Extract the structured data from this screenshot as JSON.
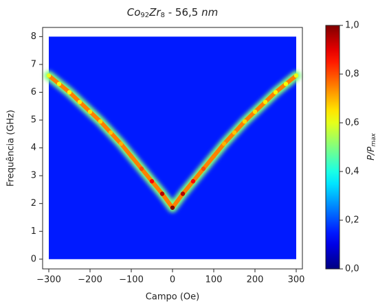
{
  "chart_data": {
    "type": "spectrum",
    "title_parts": [
      "Co",
      "92",
      "Zr",
      "8",
      " - 56,5 ",
      "nm"
    ],
    "x_label": "Campo (Oe)",
    "y_label": "Frequência (GHz)",
    "colorbar_label_parts": [
      "P/P",
      "max"
    ],
    "x": [
      -300,
      -275,
      -250,
      -225,
      -200,
      -175,
      -150,
      -125,
      -100,
      -75,
      -50,
      -25,
      0,
      25,
      50,
      75,
      100,
      125,
      150,
      175,
      200,
      225,
      250,
      275,
      300
    ],
    "y": [
      6.6,
      6.3,
      6.0,
      5.65,
      5.3,
      4.95,
      4.55,
      4.15,
      3.7,
      3.25,
      2.8,
      2.35,
      1.85,
      2.35,
      2.8,
      3.25,
      3.7,
      4.15,
      4.55,
      4.95,
      5.3,
      5.65,
      6.0,
      6.3,
      6.6
    ],
    "values": [
      0.6,
      0.62,
      0.63,
      0.64,
      0.65,
      0.66,
      0.68,
      0.7,
      0.75,
      0.8,
      0.88,
      0.95,
      1.0,
      0.95,
      0.88,
      0.8,
      0.75,
      0.7,
      0.68,
      0.66,
      0.65,
      0.64,
      0.63,
      0.62,
      0.6
    ],
    "background": 0.15,
    "colormap": "jet",
    "xlim": [
      -315,
      315
    ],
    "ylim": [
      -0.35,
      8.33
    ],
    "xticks": [
      {
        "value": -300,
        "label": "−300"
      },
      {
        "value": -200,
        "label": "−200"
      },
      {
        "value": -100,
        "label": "−100"
      },
      0,
      100,
      200,
      300
    ],
    "yticks": [
      0,
      1,
      2,
      3,
      4,
      5,
      6,
      7,
      8
    ],
    "clim": [
      0,
      1
    ],
    "cticks": [
      {
        "value": 0,
        "label": "0,0"
      },
      {
        "value": 0.2,
        "label": "0,2"
      },
      {
        "value": 0.4,
        "label": "0,4"
      },
      {
        "value": 0.6,
        "label": "0,6"
      },
      {
        "value": 0.8,
        "label": "0,8"
      },
      {
        "value": 1,
        "label": "1,0"
      }
    ]
  }
}
